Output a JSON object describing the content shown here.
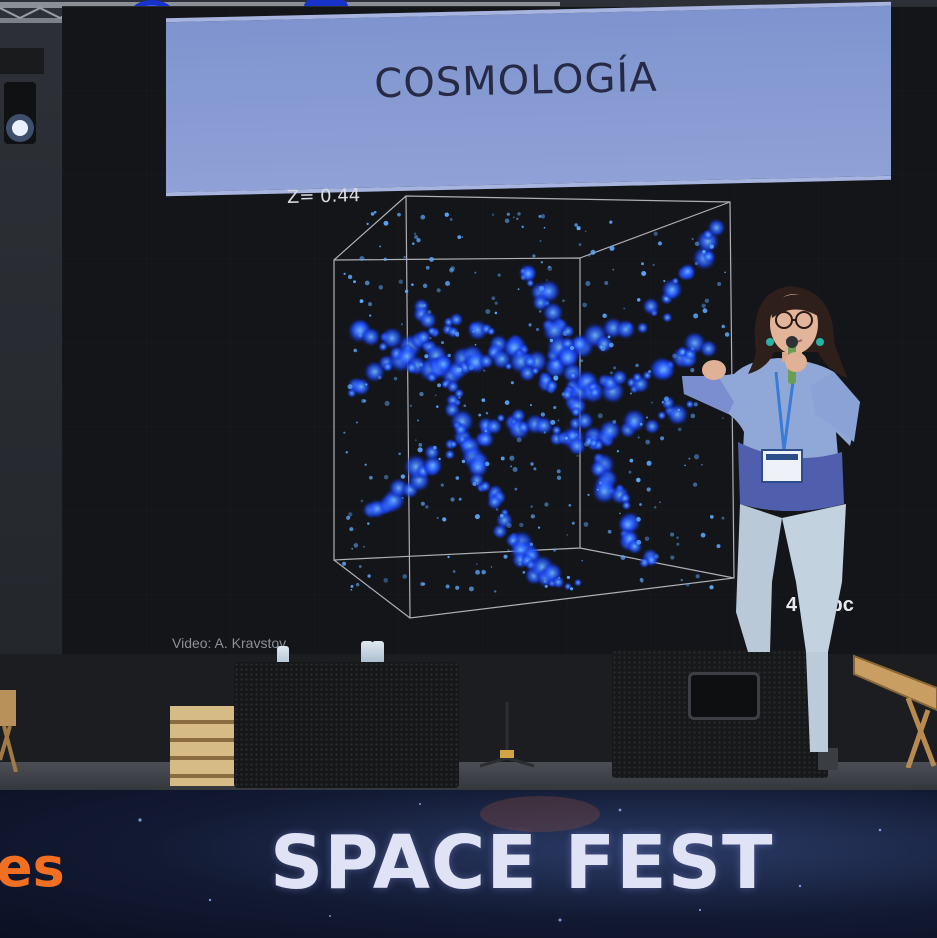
{
  "slide": {
    "title": "COSMOLOGÍA",
    "redshift_label": "Z=  0.44",
    "scale_label": "4  0 kpc",
    "credit": "Video: A. Kravstov"
  },
  "banner": {
    "event_name": "SPACE FEST",
    "sponsor_fragment": "es"
  },
  "colors": {
    "banner_title": "#8fa1d6",
    "cosmic_web": "#1e4dff",
    "event_text": "#dfe3f5",
    "sponsor": "#f06f22"
  }
}
